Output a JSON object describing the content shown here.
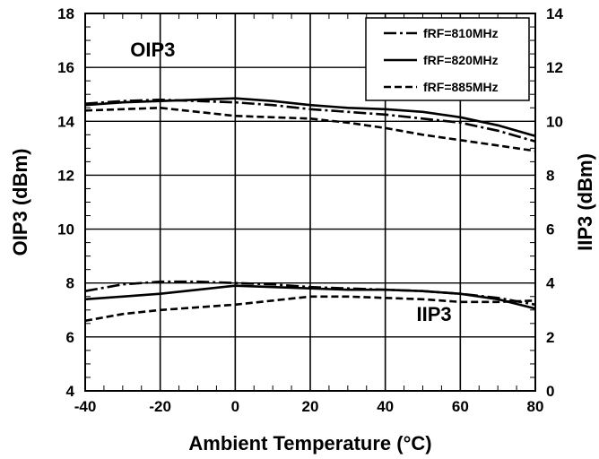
{
  "chart_data": {
    "type": "line",
    "xlabel": "Ambient Temperature (°C)",
    "ylabel": "OIP3 (dBm)",
    "y2label": "IIP3 (dBm)",
    "xlim": [
      -40,
      80
    ],
    "ylim": [
      4,
      18
    ],
    "y2lim": [
      0,
      14
    ],
    "x_ticks": [
      "-40",
      "-20",
      "0",
      "20",
      "40",
      "60",
      "80"
    ],
    "y_ticks": [
      "4",
      "6",
      "8",
      "10",
      "12",
      "14",
      "16",
      "18"
    ],
    "y2_ticks": [
      "0",
      "2",
      "4",
      "6",
      "8",
      "10",
      "12",
      "14"
    ],
    "grid": true,
    "legend_position": "top-right",
    "annotations": [
      {
        "text": "OIP3",
        "x": -22,
        "y": 16.4
      },
      {
        "text": "IIP3",
        "x": 53,
        "y": 6.6
      }
    ],
    "x": [
      -40,
      -30,
      -20,
      -10,
      0,
      10,
      20,
      30,
      40,
      50,
      60,
      70,
      80
    ],
    "series": [
      {
        "name": "fRF=810MHz",
        "style": "dashdot",
        "group": "OIP3",
        "values": [
          14.65,
          14.75,
          14.8,
          14.75,
          14.7,
          14.6,
          14.45,
          14.35,
          14.25,
          14.1,
          13.95,
          13.65,
          13.25
        ]
      },
      {
        "name": "fRF=820MHz",
        "style": "solid",
        "group": "OIP3",
        "values": [
          14.6,
          14.7,
          14.75,
          14.8,
          14.85,
          14.75,
          14.6,
          14.5,
          14.45,
          14.35,
          14.15,
          13.85,
          13.45
        ]
      },
      {
        "name": "fRF=885MHz",
        "style": "dashed",
        "group": "OIP3",
        "values": [
          14.4,
          14.45,
          14.5,
          14.35,
          14.2,
          14.15,
          14.1,
          13.95,
          13.75,
          13.5,
          13.3,
          13.1,
          12.9
        ]
      },
      {
        "name": "fRF=810MHz",
        "style": "dashdot",
        "group": "IIP3",
        "values": [
          7.7,
          7.95,
          8.05,
          8.05,
          8.0,
          7.95,
          7.85,
          7.8,
          7.75,
          7.7,
          7.6,
          7.45,
          7.2
        ]
      },
      {
        "name": "fRF=820MHz",
        "style": "solid",
        "group": "IIP3",
        "values": [
          7.4,
          7.5,
          7.6,
          7.75,
          7.9,
          7.85,
          7.8,
          7.75,
          7.75,
          7.7,
          7.6,
          7.4,
          7.05
        ]
      },
      {
        "name": "fRF=885MHz",
        "style": "dashed",
        "group": "IIP3",
        "values": [
          6.6,
          6.85,
          7.0,
          7.1,
          7.2,
          7.35,
          7.5,
          7.5,
          7.45,
          7.4,
          7.3,
          7.3,
          7.35
        ]
      }
    ]
  }
}
